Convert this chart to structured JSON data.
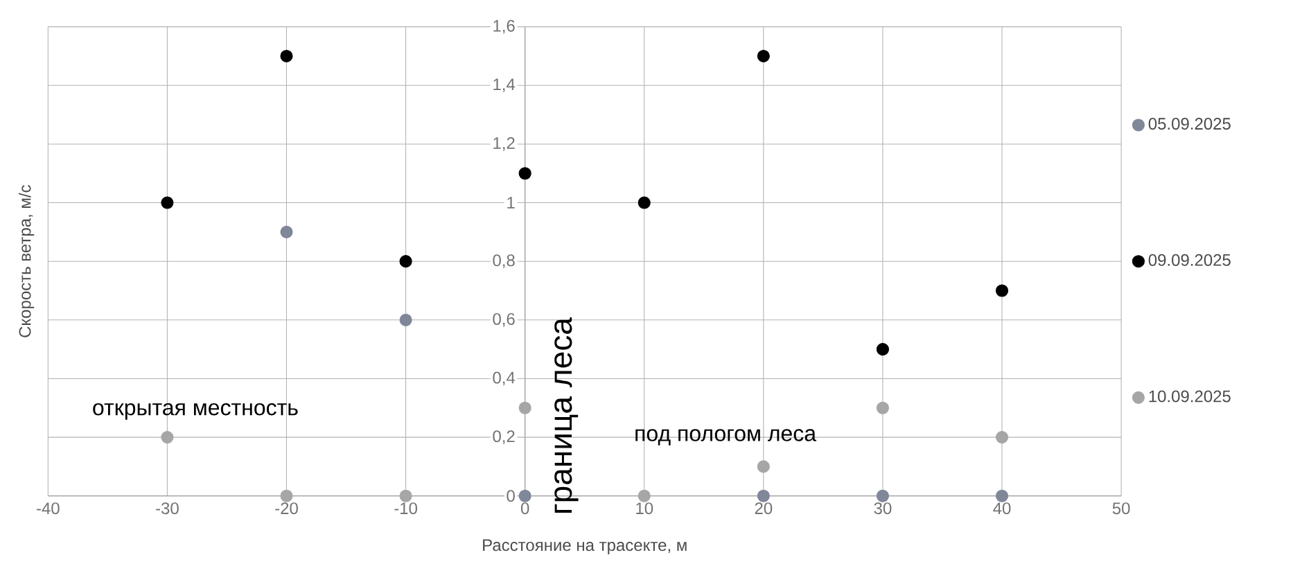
{
  "chart_data": {
    "type": "scatter",
    "xlabel": "Расстояние на трасекте, м",
    "ylabel": "Скорость ветра, м/с",
    "annotations": [
      "открытая местность",
      "граница леса",
      "под пологом леса"
    ],
    "series": [
      {
        "name": "05.09.2025",
        "color": "#7f8799",
        "x": [
          -20,
          -10,
          0,
          20,
          30,
          40
        ],
        "values": [
          0.9,
          0.6,
          0,
          0,
          0,
          0
        ]
      },
      {
        "name": "09.09.2025",
        "color": "#000000",
        "x": [
          -30,
          -20,
          -10,
          0,
          10,
          20,
          30,
          40
        ],
        "values": [
          1,
          1.5,
          0.8,
          1.1,
          1,
          1.5,
          0.5,
          0.7
        ]
      },
      {
        "name": "10.09.2025",
        "color": "#a6a6a6",
        "x": [
          -30,
          -20,
          -10,
          0,
          10,
          20,
          30,
          40
        ],
        "values": [
          0.2,
          0,
          0,
          0.3,
          0,
          0.1,
          0.3,
          0.2
        ]
      }
    ],
    "xlim": [
      -40,
      50
    ],
    "ylim": [
      0,
      1.6
    ],
    "xticks": [
      -40,
      -30,
      -20,
      -10,
      0,
      10,
      20,
      30,
      40,
      50
    ],
    "yticks": [
      0,
      {
        "value": 0.2,
        "label": "0,2"
      },
      {
        "value": 0.4,
        "label": "0,4"
      },
      {
        "value": 0.6,
        "label": "0,6"
      },
      {
        "value": 0.8,
        "label": "0,8"
      },
      1,
      {
        "value": 1.2,
        "label": "1,2"
      },
      {
        "value": 1.4,
        "label": "1,4"
      },
      {
        "value": 1.6,
        "label": "1,6"
      }
    ],
    "grid": true,
    "legend": "right",
    "marker": "circle"
  }
}
